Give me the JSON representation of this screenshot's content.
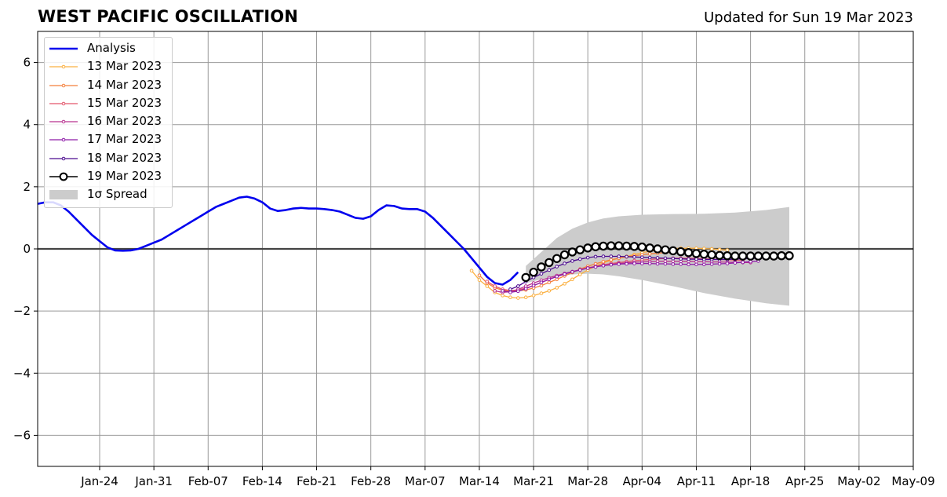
{
  "header": {
    "title": "WEST PACIFIC OSCILLATION",
    "updated": "Updated for Sun 19 Mar 2023"
  },
  "chart_data": {
    "type": "line",
    "ylim": [
      -7,
      7
    ],
    "yticks": [
      -6,
      -4,
      -2,
      0,
      2,
      4,
      6
    ],
    "ytick_labels": [
      "−6",
      "−4",
      "−2",
      "0",
      "2",
      "4",
      "6"
    ],
    "xlim": [
      "2023-01-16",
      "2023-05-09"
    ],
    "xticks": [
      "2023-01-24",
      "2023-01-31",
      "2023-02-07",
      "2023-02-14",
      "2023-02-21",
      "2023-02-28",
      "2023-03-07",
      "2023-03-14",
      "2023-03-21",
      "2023-03-28",
      "2023-04-04",
      "2023-04-11",
      "2023-04-18",
      "2023-04-25",
      "2023-05-02",
      "2023-05-09"
    ],
    "xtick_labels": [
      "Jan-24",
      "Jan-31",
      "Feb-07",
      "Feb-14",
      "Feb-21",
      "Feb-28",
      "Mar-07",
      "Mar-14",
      "Mar-21",
      "Mar-28",
      "Apr-04",
      "Apr-11",
      "Apr-18",
      "Apr-25",
      "May-02",
      "May-09"
    ],
    "grid": true,
    "legend_position": "top-left",
    "analysis": {
      "name": "Analysis",
      "color": "#0000ee",
      "x": [
        "2023-01-16",
        "2023-01-17",
        "2023-01-18",
        "2023-01-19",
        "2023-01-20",
        "2023-01-21",
        "2023-01-22",
        "2023-01-23",
        "2023-01-24",
        "2023-01-25",
        "2023-01-26",
        "2023-01-27",
        "2023-01-28",
        "2023-01-29",
        "2023-01-30",
        "2023-01-31",
        "2023-02-01",
        "2023-02-02",
        "2023-02-03",
        "2023-02-04",
        "2023-02-05",
        "2023-02-06",
        "2023-02-07",
        "2023-02-08",
        "2023-02-09",
        "2023-02-10",
        "2023-02-11",
        "2023-02-12",
        "2023-02-13",
        "2023-02-14",
        "2023-02-15",
        "2023-02-16",
        "2023-02-17",
        "2023-02-18",
        "2023-02-19",
        "2023-02-20",
        "2023-02-21",
        "2023-02-22",
        "2023-02-23",
        "2023-02-24",
        "2023-02-25",
        "2023-02-26",
        "2023-02-27",
        "2023-02-28",
        "2023-03-01",
        "2023-03-02",
        "2023-03-03",
        "2023-03-04",
        "2023-03-05",
        "2023-03-06",
        "2023-03-07",
        "2023-03-08",
        "2023-03-09",
        "2023-03-10",
        "2023-03-11",
        "2023-03-12",
        "2023-03-13",
        "2023-03-14",
        "2023-03-15",
        "2023-03-16",
        "2023-03-17",
        "2023-03-18",
        "2023-03-19"
      ],
      "y": [
        1.45,
        1.5,
        1.5,
        1.4,
        1.2,
        0.95,
        0.7,
        0.45,
        0.25,
        0.05,
        -0.05,
        -0.06,
        -0.05,
        0.0,
        0.1,
        0.2,
        0.3,
        0.45,
        0.6,
        0.75,
        0.9,
        1.05,
        1.2,
        1.35,
        1.45,
        1.55,
        1.65,
        1.68,
        1.62,
        1.5,
        1.3,
        1.22,
        1.25,
        1.3,
        1.32,
        1.3,
        1.3,
        1.28,
        1.25,
        1.2,
        1.1,
        1.0,
        0.97,
        1.05,
        1.25,
        1.4,
        1.38,
        1.3,
        1.28,
        1.28,
        1.2,
        1.0,
        0.75,
        0.5,
        0.25,
        0.0,
        -0.3,
        -0.6,
        -0.9,
        -1.1,
        -1.15,
        -1.0,
        -0.75
      ]
    },
    "forecasts": [
      {
        "name": "13 Mar 2023",
        "color": "#fbb040",
        "start": "2023-03-13",
        "y": [
          -0.7,
          -1.0,
          -1.2,
          -1.4,
          -1.5,
          -1.56,
          -1.58,
          -1.56,
          -1.5,
          -1.43,
          -1.35,
          -1.25,
          -1.12,
          -0.98,
          -0.82,
          -0.68,
          -0.55,
          -0.45,
          -0.37,
          -0.3,
          -0.24,
          -0.18,
          -0.12,
          -0.08,
          -0.04,
          -0.01,
          0.01,
          0.02,
          0.02,
          0.02,
          0.01,
          0.0,
          -0.02,
          -0.04
        ]
      },
      {
        "name": "14 Mar 2023",
        "color": "#f47f3b",
        "start": "2023-03-14",
        "y": [
          -0.85,
          -1.1,
          -1.25,
          -1.33,
          -1.36,
          -1.35,
          -1.32,
          -1.26,
          -1.18,
          -1.08,
          -0.98,
          -0.87,
          -0.76,
          -0.65,
          -0.56,
          -0.48,
          -0.41,
          -0.35,
          -0.3,
          -0.26,
          -0.22,
          -0.19,
          -0.16,
          -0.14,
          -0.12,
          -0.11,
          -0.1,
          -0.1,
          -0.11,
          -0.12,
          -0.14,
          -0.16,
          -0.18,
          -0.2
        ]
      },
      {
        "name": "15 Mar 2023",
        "color": "#e3566b",
        "start": "2023-03-15",
        "y": [
          -1.05,
          -1.2,
          -1.3,
          -1.34,
          -1.32,
          -1.26,
          -1.18,
          -1.08,
          -0.98,
          -0.89,
          -0.81,
          -0.74,
          -0.67,
          -0.61,
          -0.56,
          -0.51,
          -0.47,
          -0.44,
          -0.41,
          -0.38,
          -0.36,
          -0.34,
          -0.32,
          -0.31,
          -0.3,
          -0.3,
          -0.3,
          -0.31,
          -0.32,
          -0.33,
          -0.34,
          -0.35,
          -0.36,
          -0.37
        ]
      },
      {
        "name": "16 Mar 2023",
        "color": "#b8318f",
        "start": "2023-03-16",
        "y": [
          -1.35,
          -1.4,
          -1.38,
          -1.3,
          -1.2,
          -1.1,
          -1.01,
          -0.93,
          -0.86,
          -0.79,
          -0.73,
          -0.67,
          -0.62,
          -0.57,
          -0.53,
          -0.5,
          -0.47,
          -0.45,
          -0.43,
          -0.42,
          -0.41,
          -0.4,
          -0.4,
          -0.4,
          -0.4,
          -0.4,
          -0.41,
          -0.41,
          -0.42,
          -0.42,
          -0.43,
          -0.43,
          -0.44,
          -0.44
        ]
      },
      {
        "name": "17 Mar 2023",
        "color": "#8e1ba8",
        "start": "2023-03-17",
        "y": [
          -1.35,
          -1.4,
          -1.36,
          -1.28,
          -1.18,
          -1.08,
          -0.98,
          -0.89,
          -0.81,
          -0.74,
          -0.68,
          -0.62,
          -0.58,
          -0.54,
          -0.51,
          -0.49,
          -0.48,
          -0.47,
          -0.47,
          -0.47,
          -0.48,
          -0.48,
          -0.49,
          -0.49,
          -0.5,
          -0.5,
          -0.5,
          -0.49,
          -0.48,
          -0.47,
          -0.45,
          -0.43,
          -0.41,
          -0.39
        ]
      },
      {
        "name": "18 Mar 2023",
        "color": "#4b0a8f",
        "start": "2023-03-18",
        "y": [
          -1.3,
          -1.2,
          -1.05,
          -0.92,
          -0.8,
          -0.68,
          -0.57,
          -0.47,
          -0.39,
          -0.33,
          -0.28,
          -0.25,
          -0.24,
          -0.24,
          -0.24,
          -0.25,
          -0.26,
          -0.27,
          -0.28,
          -0.29,
          -0.3,
          -0.31,
          -0.32,
          -0.33,
          -0.33,
          -0.34,
          -0.34,
          -0.34,
          -0.34,
          -0.33,
          -0.32,
          -0.31,
          -0.3,
          -0.29
        ]
      },
      {
        "name": "19 Mar 2023",
        "color": "#000000",
        "start": "2023-03-20",
        "markers": "open-circle",
        "y": [
          -0.92,
          -0.75,
          -0.58,
          -0.44,
          -0.31,
          -0.19,
          -0.1,
          -0.03,
          0.03,
          0.07,
          0.09,
          0.1,
          0.1,
          0.09,
          0.08,
          0.06,
          0.03,
          0.0,
          -0.03,
          -0.06,
          -0.09,
          -0.12,
          -0.15,
          -0.17,
          -0.19,
          -0.21,
          -0.22,
          -0.23,
          -0.23,
          -0.23,
          -0.23,
          -0.23,
          -0.23,
          -0.22,
          -0.22
        ]
      }
    ],
    "spread": {
      "name": "1σ Spread",
      "color": "#cccccc",
      "x": [
        "2023-03-20",
        "2023-03-22",
        "2023-03-24",
        "2023-03-26",
        "2023-03-28",
        "2023-03-30",
        "2023-04-01",
        "2023-04-04",
        "2023-04-08",
        "2023-04-12",
        "2023-04-16",
        "2023-04-20",
        "2023-04-23"
      ],
      "upper": [
        -0.55,
        -0.1,
        0.35,
        0.65,
        0.85,
        0.98,
        1.05,
        1.1,
        1.12,
        1.13,
        1.17,
        1.25,
        1.35
      ],
      "lower": [
        -1.1,
        -0.98,
        -0.88,
        -0.82,
        -0.8,
        -0.82,
        -0.88,
        -1.0,
        -1.2,
        -1.42,
        -1.6,
        -1.75,
        -1.83
      ]
    },
    "legend": [
      {
        "label": "Analysis",
        "kind": "line",
        "color": "#0000ee"
      },
      {
        "label": "13 Mar 2023",
        "kind": "dot-line",
        "color": "#fbb040"
      },
      {
        "label": "14 Mar 2023",
        "kind": "dot-line",
        "color": "#f47f3b"
      },
      {
        "label": "15 Mar 2023",
        "kind": "dot-line",
        "color": "#e3566b"
      },
      {
        "label": "16 Mar 2023",
        "kind": "dot-line",
        "color": "#b8318f"
      },
      {
        "label": "17 Mar 2023",
        "kind": "dot-line",
        "color": "#8e1ba8"
      },
      {
        "label": "18 Mar 2023",
        "kind": "dot-line",
        "color": "#4b0a8f"
      },
      {
        "label": "19 Mar 2023",
        "kind": "circle-line",
        "color": "#000000"
      },
      {
        "label": "1σ Spread",
        "kind": "patch",
        "color": "#cccccc"
      }
    ]
  }
}
